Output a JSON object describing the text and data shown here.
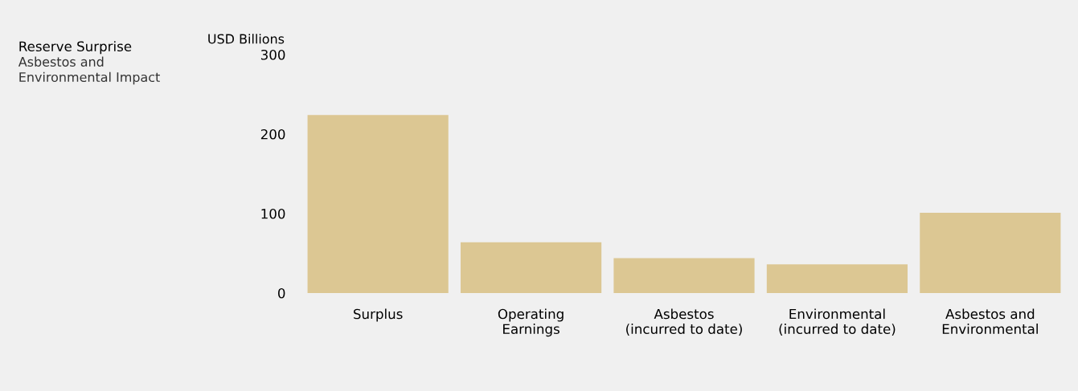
{
  "chart_data": {
    "type": "bar",
    "title": "Reserve Surprise",
    "subtitle": "Asbestos and\nEnvironmental Impact",
    "ylabel": "USD Billions",
    "categories": [
      "Surplus",
      "Operating\nEarnings",
      "Asbestos\n(incurred to date)",
      "Environmental\n(incurred to date)",
      "Asbestos and\nEnvironmental"
    ],
    "values": [
      224,
      64,
      44,
      36,
      101
    ],
    "color": "#dcc793",
    "ylim": [
      0,
      300
    ],
    "yticks": [
      0,
      100,
      200,
      300
    ],
    "grid": false,
    "legend": false
  }
}
